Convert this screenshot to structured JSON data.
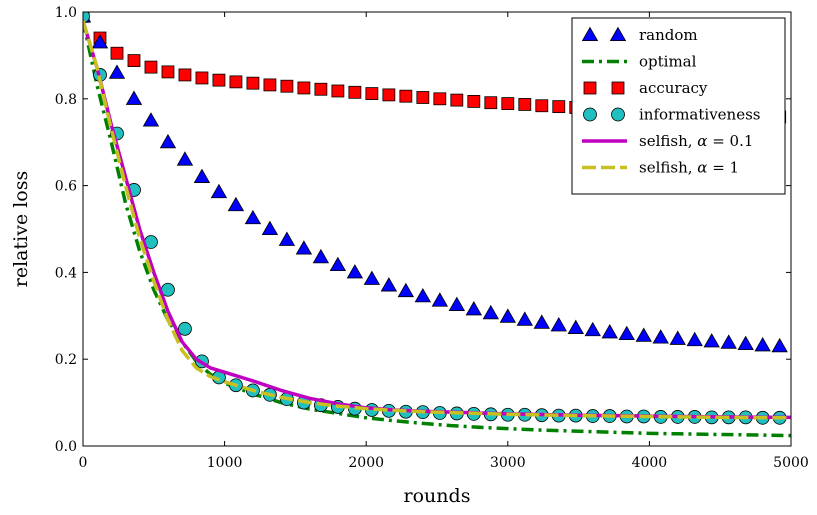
{
  "chart_data": {
    "type": "line",
    "xlabel": "rounds",
    "ylabel": "relative loss",
    "xlim": [
      0,
      5000
    ],
    "ylim": [
      0,
      1.0
    ],
    "x_ticks": [
      "0",
      "1000",
      "2000",
      "3000",
      "4000",
      "5000"
    ],
    "y_ticks": [
      "0.0",
      "0.2",
      "0.4",
      "0.6",
      "0.8",
      "1.0"
    ],
    "grid": false,
    "legend_position": "top-right",
    "series": [
      {
        "name": "random",
        "style": "triangle-markers",
        "color": "#0000ff",
        "x": [
          0,
          120,
          240,
          360,
          480,
          600,
          720,
          840,
          960,
          1080,
          1200,
          1320,
          1440,
          1560,
          1680,
          1800,
          1920,
          2040,
          2160,
          2280,
          2400,
          2520,
          2640,
          2760,
          2880,
          3000,
          3120,
          3240,
          3360,
          3480,
          3600,
          3720,
          3840,
          3960,
          4080,
          4200,
          4320,
          4440,
          4560,
          4680,
          4800,
          4920
        ],
        "y": [
          0.99,
          0.93,
          0.86,
          0.8,
          0.75,
          0.7,
          0.66,
          0.62,
          0.585,
          0.555,
          0.525,
          0.5,
          0.475,
          0.455,
          0.435,
          0.417,
          0.4,
          0.385,
          0.37,
          0.357,
          0.345,
          0.335,
          0.325,
          0.315,
          0.306,
          0.298,
          0.291,
          0.284,
          0.278,
          0.272,
          0.267,
          0.262,
          0.258,
          0.254,
          0.25,
          0.247,
          0.244,
          0.241,
          0.238,
          0.235,
          0.232,
          0.23
        ]
      },
      {
        "name": "optimal",
        "style": "dash-dot",
        "color": "#008000",
        "x": [
          0,
          100,
          200,
          300,
          400,
          500,
          600,
          700,
          800,
          900,
          1000,
          1200,
          1400,
          1600,
          1800,
          2000,
          2200,
          2400,
          2600,
          2800,
          3000,
          3200,
          3400,
          3600,
          3800,
          4000,
          4200,
          4400,
          4600,
          4800,
          5000
        ],
        "y": [
          0.98,
          0.83,
          0.7,
          0.56,
          0.45,
          0.36,
          0.29,
          0.24,
          0.195,
          0.165,
          0.145,
          0.12,
          0.1,
          0.085,
          0.075,
          0.065,
          0.058,
          0.052,
          0.047,
          0.043,
          0.04,
          0.037,
          0.035,
          0.033,
          0.031,
          0.029,
          0.028,
          0.027,
          0.026,
          0.025,
          0.024
        ]
      },
      {
        "name": "accuracy",
        "style": "square-markers",
        "color": "#ff0000",
        "x": [
          0,
          120,
          240,
          360,
          480,
          600,
          720,
          840,
          960,
          1080,
          1200,
          1320,
          1440,
          1560,
          1680,
          1800,
          1920,
          2040,
          2160,
          2280,
          2400,
          2520,
          2640,
          2760,
          2880,
          3000,
          3120,
          3240,
          3360,
          3480,
          3600,
          3720,
          3840,
          3960,
          4080,
          4200,
          4320,
          4440,
          4560,
          4680,
          4800,
          4920
        ],
        "y": [
          0.99,
          0.94,
          0.905,
          0.888,
          0.873,
          0.862,
          0.855,
          0.848,
          0.843,
          0.839,
          0.836,
          0.832,
          0.829,
          0.825,
          0.822,
          0.818,
          0.815,
          0.812,
          0.809,
          0.806,
          0.803,
          0.8,
          0.797,
          0.794,
          0.791,
          0.789,
          0.787,
          0.784,
          0.782,
          0.78,
          0.778,
          0.776,
          0.774,
          0.772,
          0.77,
          0.768,
          0.766,
          0.764,
          0.762,
          0.76,
          0.759,
          0.758
        ]
      },
      {
        "name": "informativeness",
        "style": "circle-markers",
        "color": "#20c0c0",
        "x": [
          0,
          120,
          240,
          360,
          480,
          600,
          720,
          840,
          960,
          1080,
          1200,
          1320,
          1440,
          1560,
          1680,
          1800,
          1920,
          2040,
          2160,
          2280,
          2400,
          2520,
          2640,
          2760,
          2880,
          3000,
          3120,
          3240,
          3360,
          3480,
          3600,
          3720,
          3840,
          3960,
          4080,
          4200,
          4320,
          4440,
          4560,
          4680,
          4800,
          4920
        ],
        "y": [
          0.99,
          0.855,
          0.72,
          0.59,
          0.47,
          0.36,
          0.27,
          0.195,
          0.158,
          0.14,
          0.128,
          0.118,
          0.108,
          0.1,
          0.094,
          0.09,
          0.086,
          0.083,
          0.081,
          0.079,
          0.078,
          0.076,
          0.075,
          0.074,
          0.073,
          0.072,
          0.072,
          0.071,
          0.07,
          0.07,
          0.069,
          0.069,
          0.068,
          0.068,
          0.067,
          0.067,
          0.067,
          0.066,
          0.066,
          0.066,
          0.065,
          0.065
        ]
      },
      {
        "name": "selfish, α = 0.1",
        "style": "solid",
        "color": "#c000c0",
        "x": [
          0,
          100,
          200,
          300,
          400,
          500,
          600,
          700,
          800,
          900,
          1000,
          1200,
          1400,
          1600,
          1800,
          2000,
          2200,
          2400,
          2600,
          2800,
          3000,
          3500,
          4000,
          4500,
          5000
        ],
        "y": [
          0.98,
          0.87,
          0.74,
          0.62,
          0.5,
          0.4,
          0.31,
          0.24,
          0.2,
          0.18,
          0.17,
          0.15,
          0.128,
          0.11,
          0.097,
          0.088,
          0.083,
          0.08,
          0.078,
          0.076,
          0.074,
          0.071,
          0.069,
          0.067,
          0.066
        ]
      },
      {
        "name": "selfish, α = 1",
        "style": "dashed",
        "color": "#c8c020",
        "x": [
          0,
          100,
          200,
          300,
          400,
          500,
          600,
          700,
          800,
          900,
          1000,
          1200,
          1400,
          1600,
          1800,
          2000,
          2200,
          2400,
          2600,
          2800,
          3000,
          3500,
          4000,
          4500,
          5000
        ],
        "y": [
          0.98,
          0.87,
          0.73,
          0.6,
          0.48,
          0.38,
          0.29,
          0.22,
          0.18,
          0.16,
          0.148,
          0.128,
          0.112,
          0.1,
          0.092,
          0.086,
          0.082,
          0.079,
          0.077,
          0.075,
          0.073,
          0.07,
          0.068,
          0.066,
          0.065
        ]
      }
    ],
    "legend_labels": [
      {
        "pre": "random",
        "var": "",
        "post": ""
      },
      {
        "pre": "optimal",
        "var": "",
        "post": ""
      },
      {
        "pre": "accuracy",
        "var": "",
        "post": ""
      },
      {
        "pre": "informativeness",
        "var": "",
        "post": ""
      },
      {
        "pre": "selfish, ",
        "var": "α",
        "post": " = 0.1"
      },
      {
        "pre": "selfish, ",
        "var": "α",
        "post": " = 1"
      }
    ]
  }
}
